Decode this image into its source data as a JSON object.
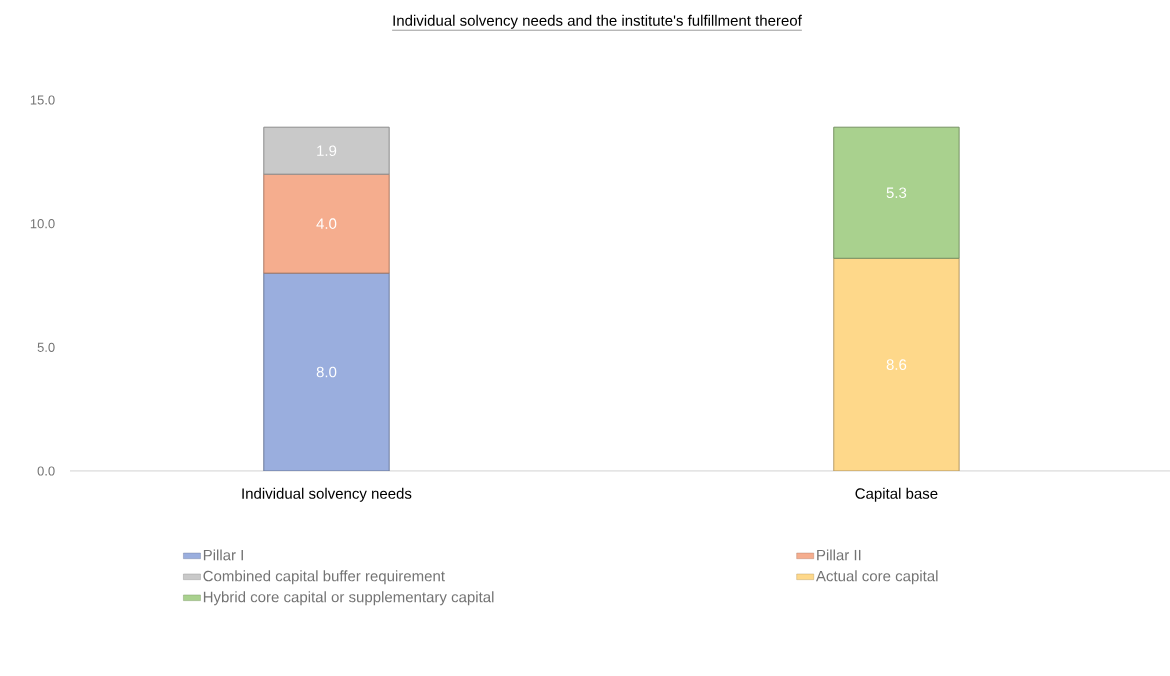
{
  "chart_data": {
    "type": "bar",
    "stacked": true,
    "title": "Individual solvency needs and the institute's fulfillment thereof",
    "categories": [
      "Individual solvency needs",
      "Capital base"
    ],
    "series": [
      {
        "name": "Pillar I",
        "color": "#9aaede",
        "values": [
          8.0,
          null
        ],
        "value_labels": [
          "8.0",
          null
        ]
      },
      {
        "name": "Pillar II",
        "color": "#f5ad8e",
        "values": [
          4.0,
          null
        ],
        "value_labels": [
          "4.0",
          null
        ]
      },
      {
        "name": "Combined capital buffer requirement",
        "color": "#c9c9c9",
        "values": [
          1.9,
          null
        ],
        "value_labels": [
          "1.9",
          null
        ]
      },
      {
        "name": "Actual core capital",
        "color": "#fed88a",
        "values": [
          null,
          8.6
        ],
        "value_labels": [
          null,
          "8.6"
        ]
      },
      {
        "name": "Hybrid core capital or supplementary capital",
        "color": "#a9d18e",
        "values": [
          null,
          5.3
        ],
        "value_labels": [
          null,
          "5.3"
        ]
      }
    ],
    "ylim": [
      0,
      15
    ],
    "yticks": [
      {
        "value": 0,
        "label": "0.0"
      },
      {
        "value": 5,
        "label": "5.0"
      },
      {
        "value": 10,
        "label": "10.0"
      },
      {
        "value": 15,
        "label": "15.0"
      }
    ],
    "grid": false,
    "legend": "bottom"
  }
}
